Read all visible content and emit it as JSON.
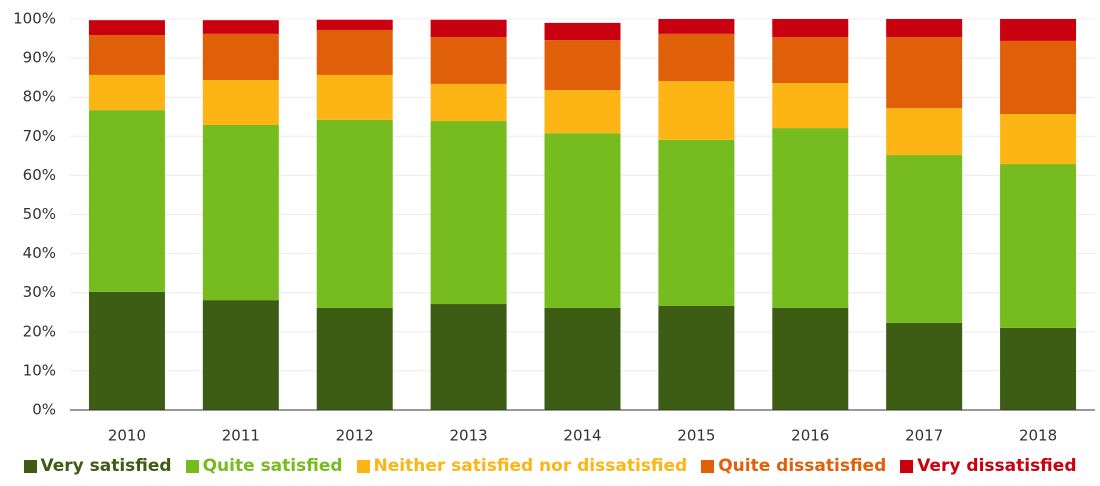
{
  "chart_data": {
    "type": "stacked-bar",
    "categories": [
      "2010",
      "2011",
      "2012",
      "2013",
      "2014",
      "2015",
      "2016",
      "2017",
      "2018"
    ],
    "series": [
      {
        "name": "Very satisfied",
        "color": "#3d5c14",
        "values": [
          30.2,
          28.1,
          26.1,
          27.1,
          26.1,
          26.6,
          26.1,
          22.3,
          21.0
        ]
      },
      {
        "name": "Quite satisfied",
        "color": "#77bc1f",
        "values": [
          46.5,
          44.8,
          48.1,
          46.8,
          44.7,
          42.5,
          46.0,
          42.9,
          41.9
        ]
      },
      {
        "name": "Neither satisfied nor dissatisfied",
        "color": "#fdb515",
        "values": [
          9.0,
          11.5,
          11.5,
          9.5,
          11.0,
          15.0,
          11.5,
          12.0,
          12.8
        ]
      },
      {
        "name": "Quite dissatisfied",
        "color": "#e0600a",
        "values": [
          10.2,
          11.8,
          11.5,
          12.0,
          12.8,
          12.1,
          11.8,
          18.2,
          18.7
        ]
      },
      {
        "name": "Very dissatisfied",
        "color": "#c8000f",
        "values": [
          3.8,
          3.5,
          2.6,
          4.4,
          4.4,
          3.8,
          4.6,
          4.6,
          5.6
        ]
      }
    ],
    "ylim": [
      0,
      100
    ],
    "yticks": [
      {
        "value": 0,
        "label": "0%"
      },
      {
        "value": 10,
        "label": "10%"
      },
      {
        "value": 20,
        "label": "20%"
      },
      {
        "value": 30,
        "label": "30%"
      },
      {
        "value": 40,
        "label": "40%"
      },
      {
        "value": 50,
        "label": "50%"
      },
      {
        "value": 60,
        "label": "60%"
      },
      {
        "value": 70,
        "label": "70%"
      },
      {
        "value": 80,
        "label": "80%"
      },
      {
        "value": 90,
        "label": "90%"
      },
      {
        "value": 100,
        "label": "100%"
      }
    ],
    "grid": true
  }
}
